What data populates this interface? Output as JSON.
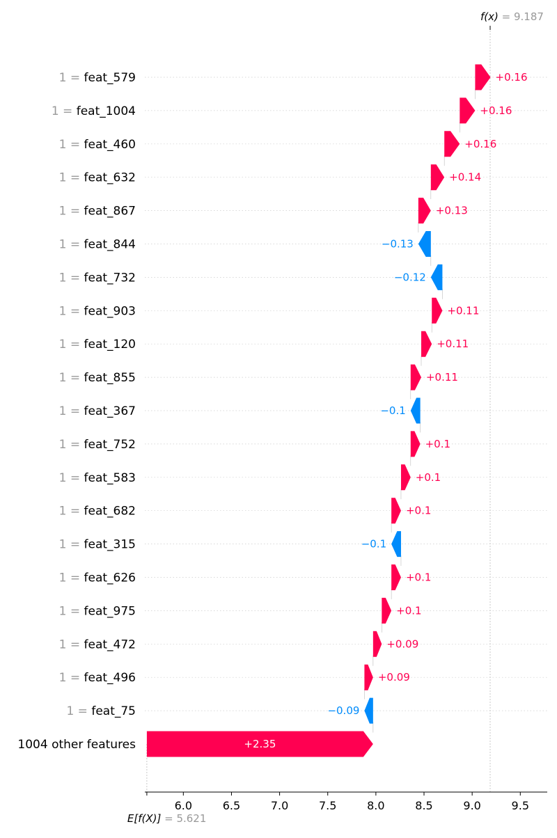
{
  "chart_data": {
    "type": "waterfall",
    "title": "",
    "xlabel": "",
    "ylabel": "",
    "xlim": [
      5.6,
      9.78
    ],
    "x_ticks": [
      6.0,
      6.5,
      7.0,
      7.5,
      8.0,
      8.5,
      9.0,
      9.5
    ],
    "x_tick_labels": [
      "6.0",
      "6.5",
      "7.0",
      "7.5",
      "8.0",
      "8.5",
      "9.0",
      "9.5"
    ],
    "base_value": 5.621,
    "base_label_prefix": "E[f(X)]",
    "base_label_value": "= 5.621",
    "final_value": 9.187,
    "final_label_prefix": "f(x)",
    "final_label_value": "= 9.187",
    "colors": {
      "positive": "#ff0051",
      "negative": "#008bfb",
      "muted": "#999999",
      "text": "#000000"
    },
    "features": [
      {
        "value_text": "1 =",
        "name": "feat_579",
        "shap": 0.16,
        "label": "+0.16"
      },
      {
        "value_text": "1 =",
        "name": "feat_1004",
        "shap": 0.16,
        "label": "+0.16"
      },
      {
        "value_text": "1 =",
        "name": "feat_460",
        "shap": 0.16,
        "label": "+0.16"
      },
      {
        "value_text": "1 =",
        "name": "feat_632",
        "shap": 0.14,
        "label": "+0.14"
      },
      {
        "value_text": "1 =",
        "name": "feat_867",
        "shap": 0.13,
        "label": "+0.13"
      },
      {
        "value_text": "1 =",
        "name": "feat_844",
        "shap": -0.13,
        "label": "−0.13"
      },
      {
        "value_text": "1 =",
        "name": "feat_732",
        "shap": -0.12,
        "label": "−0.12"
      },
      {
        "value_text": "1 =",
        "name": "feat_903",
        "shap": 0.11,
        "label": "+0.11"
      },
      {
        "value_text": "1 =",
        "name": "feat_120",
        "shap": 0.11,
        "label": "+0.11"
      },
      {
        "value_text": "1 =",
        "name": "feat_855",
        "shap": 0.11,
        "label": "+0.11"
      },
      {
        "value_text": "1 =",
        "name": "feat_367",
        "shap": -0.1,
        "label": "−0.1"
      },
      {
        "value_text": "1 =",
        "name": "feat_752",
        "shap": 0.1,
        "label": "+0.1"
      },
      {
        "value_text": "1 =",
        "name": "feat_583",
        "shap": 0.1,
        "label": "+0.1"
      },
      {
        "value_text": "1 =",
        "name": "feat_682",
        "shap": 0.1,
        "label": "+0.1"
      },
      {
        "value_text": "1 =",
        "name": "feat_315",
        "shap": -0.1,
        "label": "−0.1"
      },
      {
        "value_text": "1 =",
        "name": "feat_626",
        "shap": 0.1,
        "label": "+0.1"
      },
      {
        "value_text": "1 =",
        "name": "feat_975",
        "shap": 0.1,
        "label": "+0.1"
      },
      {
        "value_text": "1 =",
        "name": "feat_472",
        "shap": 0.09,
        "label": "+0.09"
      },
      {
        "value_text": "1 =",
        "name": "feat_496",
        "shap": 0.09,
        "label": "+0.09"
      },
      {
        "value_text": "1 =",
        "name": "feat_75",
        "shap": -0.09,
        "label": "−0.09"
      },
      {
        "value_text": "",
        "name": "1004 other features",
        "shap": 2.35,
        "label": "+2.35"
      }
    ]
  }
}
